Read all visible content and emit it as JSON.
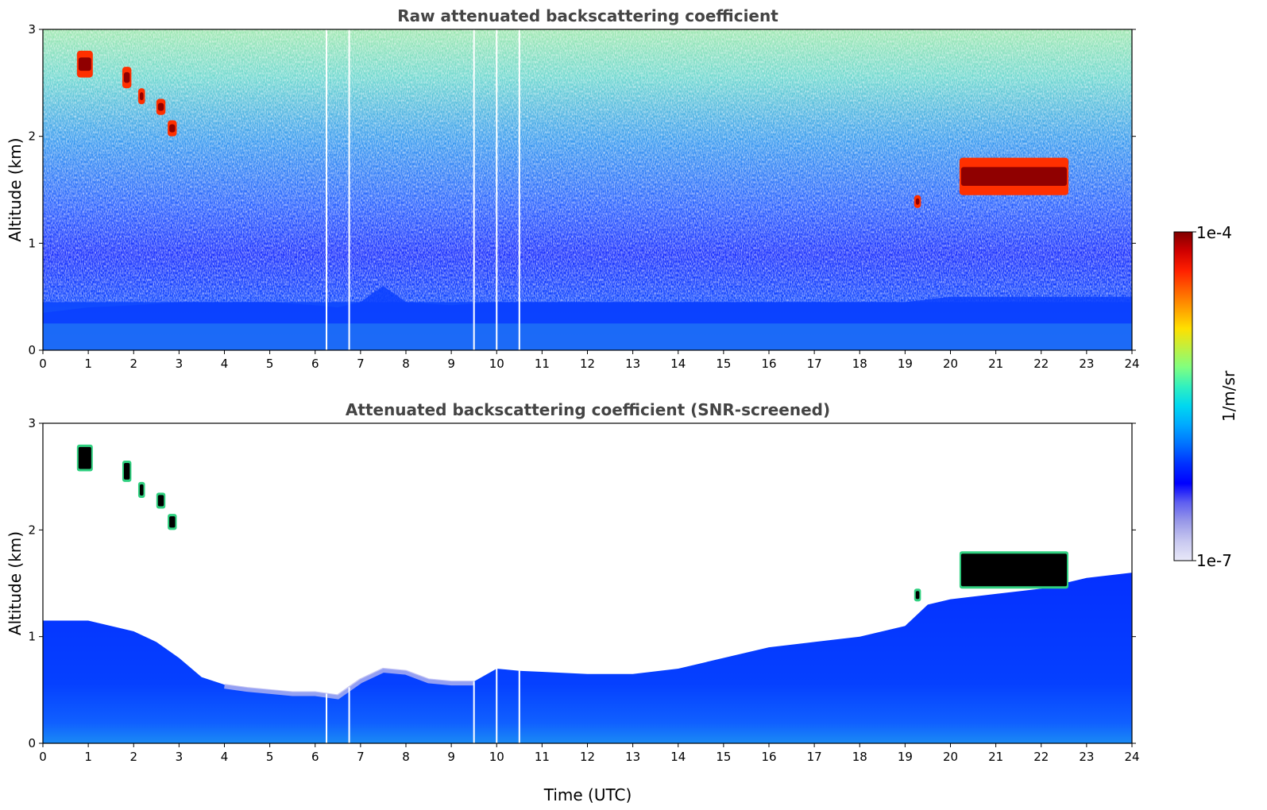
{
  "chart_data": [
    {
      "type": "heatmap",
      "title": "Raw attenuated backscattering coefficient",
      "xlabel": "",
      "ylabel": "Altitude (km)",
      "xlim": [
        0,
        24
      ],
      "ylim": [
        0,
        3
      ],
      "xticks": [
        "0",
        "1",
        "2",
        "3",
        "4",
        "5",
        "6",
        "7",
        "8",
        "9",
        "10",
        "11",
        "12",
        "13",
        "14",
        "15",
        "16",
        "17",
        "18",
        "19",
        "20",
        "21",
        "22",
        "23",
        "24"
      ],
      "yticks": [
        "0",
        "1",
        "2",
        "3"
      ],
      "screened": false,
      "aerosol_layer_top_km": {
        "time": [
          0,
          1,
          2,
          3,
          4,
          5,
          6,
          6.5,
          7,
          7.5,
          8,
          9,
          10,
          11,
          12,
          13,
          14,
          15,
          16,
          17,
          18,
          19,
          20,
          21,
          22,
          23,
          24
        ],
        "top": [
          0.35,
          0.4,
          0.42,
          0.45,
          0.45,
          0.45,
          0.42,
          0.4,
          0.45,
          0.6,
          0.45,
          0.42,
          0.45,
          0.45,
          0.45,
          0.45,
          0.45,
          0.45,
          0.45,
          0.45,
          0.45,
          0.45,
          0.5,
          0.5,
          0.5,
          0.5,
          0.5
        ]
      },
      "cloud_segments": [
        {
          "t0": 0.75,
          "t1": 1.1,
          "z0": 2.55,
          "z1": 2.8
        },
        {
          "t0": 1.75,
          "t1": 1.95,
          "z0": 2.45,
          "z1": 2.65
        },
        {
          "t0": 2.1,
          "t1": 2.25,
          "z0": 2.3,
          "z1": 2.45
        },
        {
          "t0": 2.5,
          "t1": 2.7,
          "z0": 2.2,
          "z1": 2.35
        },
        {
          "t0": 2.75,
          "t1": 2.95,
          "z0": 2.0,
          "z1": 2.15
        },
        {
          "t0": 19.2,
          "t1": 19.35,
          "z0": 1.33,
          "z1": 1.45
        },
        {
          "t0": 20.2,
          "t1": 22.6,
          "z0": 1.45,
          "z1": 1.8
        }
      ],
      "missing_profiles": [
        6.25,
        6.75,
        9.5,
        10.0,
        10.5
      ]
    },
    {
      "type": "heatmap",
      "title": "Attenuated backscattering coefficient (SNR-screened)",
      "xlabel": "Time (UTC)",
      "ylabel": "Altitude (km)",
      "xlim": [
        0,
        24
      ],
      "ylim": [
        0,
        3
      ],
      "xticks": [
        "0",
        "1",
        "2",
        "3",
        "4",
        "5",
        "6",
        "7",
        "8",
        "9",
        "10",
        "11",
        "12",
        "13",
        "14",
        "15",
        "16",
        "17",
        "18",
        "19",
        "20",
        "21",
        "22",
        "23",
        "24"
      ],
      "yticks": [
        "0",
        "1",
        "2",
        "3"
      ],
      "screened": true,
      "boundary_layer_top_km": {
        "time": [
          0,
          0.5,
          1,
          1.5,
          2,
          2.5,
          3,
          3.5,
          4,
          4.5,
          5,
          5.5,
          6,
          6.5,
          7,
          7.5,
          8,
          8.5,
          9,
          9.5,
          10,
          10.5,
          11,
          12,
          13,
          14,
          15,
          16,
          17,
          18,
          19,
          19.5,
          20,
          21,
          22,
          23,
          24
        ],
        "top": [
          1.15,
          1.15,
          1.15,
          1.1,
          1.05,
          0.95,
          0.8,
          0.62,
          0.55,
          0.52,
          0.5,
          0.48,
          0.48,
          0.45,
          0.6,
          0.7,
          0.68,
          0.6,
          0.58,
          0.58,
          0.7,
          0.68,
          0.67,
          0.65,
          0.65,
          0.7,
          0.8,
          0.9,
          0.95,
          1.0,
          1.1,
          1.3,
          1.35,
          1.4,
          1.45,
          1.55,
          1.6
        ]
      },
      "cloud_segments": [
        {
          "t0": 0.75,
          "t1": 1.1,
          "z0": 2.55,
          "z1": 2.8
        },
        {
          "t0": 1.75,
          "t1": 1.95,
          "z0": 2.45,
          "z1": 2.65
        },
        {
          "t0": 2.1,
          "t1": 2.25,
          "z0": 2.3,
          "z1": 2.45
        },
        {
          "t0": 2.5,
          "t1": 2.7,
          "z0": 2.2,
          "z1": 2.35
        },
        {
          "t0": 2.75,
          "t1": 2.95,
          "z0": 2.0,
          "z1": 2.15
        },
        {
          "t0": 19.2,
          "t1": 19.35,
          "z0": 1.33,
          "z1": 1.45
        },
        {
          "t0": 20.2,
          "t1": 22.6,
          "z0": 1.45,
          "z1": 1.8
        }
      ],
      "missing_profiles": [
        6.25,
        6.75,
        9.5,
        10.0,
        10.5
      ]
    }
  ],
  "colorbar": {
    "label": "1/m/sr",
    "min_label": "1e-7",
    "max_label": "1e-4",
    "scale": "log",
    "colormap": "jet",
    "colors": [
      "#e8e8f8",
      "#c8c8f0",
      "#9a9ae8",
      "#6060f0",
      "#0000ff",
      "#0030ff",
      "#0070ff",
      "#00a8ff",
      "#00d8f0",
      "#30f0c0",
      "#80ff80",
      "#c0f040",
      "#ffe000",
      "#ffa000",
      "#ff6000",
      "#ff2000",
      "#d00000",
      "#800000"
    ]
  }
}
